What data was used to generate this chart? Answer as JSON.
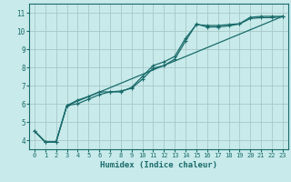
{
  "title": "",
  "xlabel": "Humidex (Indice chaleur)",
  "ylabel": "",
  "bg_color": "#c8eaea",
  "grid_color": "#a8c8c8",
  "line_color": "#1a6b6b",
  "xlim": [
    -0.5,
    23.5
  ],
  "ylim": [
    3.5,
    11.5
  ],
  "xticks": [
    0,
    1,
    2,
    3,
    4,
    5,
    6,
    7,
    8,
    9,
    10,
    11,
    12,
    13,
    14,
    15,
    16,
    17,
    18,
    19,
    20,
    21,
    22,
    23
  ],
  "yticks": [
    4,
    5,
    6,
    7,
    8,
    9,
    10,
    11
  ],
  "series1_x": [
    0,
    1,
    2,
    3,
    4,
    5,
    6,
    7,
    8,
    9,
    10,
    11,
    12,
    13,
    14,
    15,
    16,
    17,
    18,
    19,
    20,
    21,
    22,
    23
  ],
  "series1_y": [
    4.5,
    3.9,
    3.9,
    5.9,
    6.2,
    6.4,
    6.65,
    6.65,
    6.65,
    6.9,
    7.5,
    8.1,
    8.3,
    8.6,
    9.6,
    10.35,
    10.3,
    10.3,
    10.35,
    10.4,
    10.75,
    10.8,
    10.8,
    10.8
  ],
  "series2_x": [
    0,
    1,
    2,
    3,
    4,
    5,
    6,
    7,
    8,
    9,
    10,
    11,
    12,
    13,
    14,
    15,
    16,
    17,
    18,
    19,
    20,
    21,
    22,
    23
  ],
  "series2_y": [
    4.5,
    3.9,
    3.9,
    5.9,
    6.0,
    6.25,
    6.5,
    6.65,
    6.7,
    6.85,
    7.35,
    7.95,
    8.1,
    8.45,
    9.45,
    10.38,
    10.22,
    10.22,
    10.28,
    10.38,
    10.68,
    10.73,
    10.73,
    10.78
  ],
  "series3_x": [
    0,
    1,
    2,
    3,
    23
  ],
  "series3_y": [
    4.5,
    3.9,
    3.9,
    5.9,
    10.8
  ]
}
